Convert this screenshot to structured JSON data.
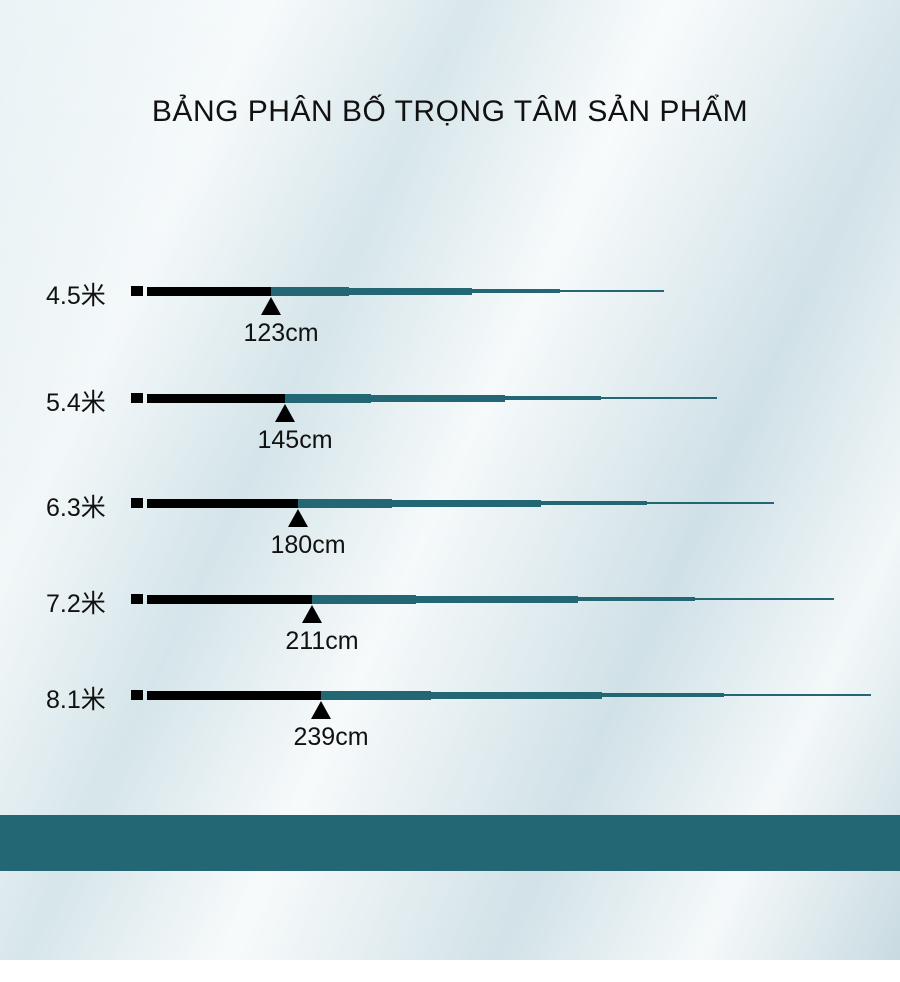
{
  "title": "BẢNG PHÂN BỐ TRỌNG TÂM SẢN PHẨM",
  "colors": {
    "handle": "#000000",
    "rod": "#236674",
    "band": "#236674"
  },
  "rods": [
    {
      "length": "4.5米",
      "balance_point": "123cm"
    },
    {
      "length": "5.4米",
      "balance_point": "145cm"
    },
    {
      "length": "6.3米",
      "balance_point": "180cm"
    },
    {
      "length": "7.2米",
      "balance_point": "211cm"
    },
    {
      "length": "8.1米",
      "balance_point": "239cm"
    }
  ]
}
